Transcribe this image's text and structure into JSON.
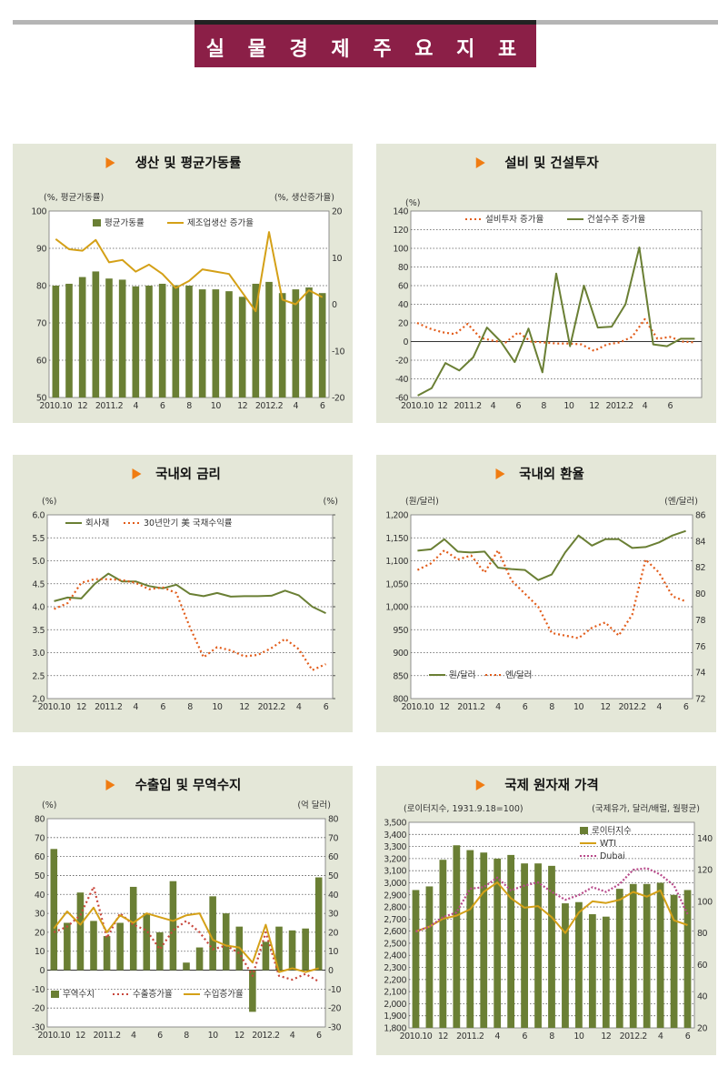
{
  "page": {
    "title": "실 물 경 제 주 요 지 표"
  },
  "chart_data": [
    {
      "id": "prod",
      "type": "bar",
      "title": "생산 및 평균가동률",
      "left_unit": "(%, 평균가동률)",
      "right_unit": "(%, 생산증가율)",
      "x_labels": [
        "2010.10",
        "12",
        "2011.2",
        "4",
        "6",
        "8",
        "10",
        "12",
        "2012.2",
        "4",
        "6"
      ],
      "ylim": [
        50,
        100
      ],
      "yticks": [
        50,
        60,
        70,
        80,
        90,
        100
      ],
      "y2lim": [
        -20,
        20
      ],
      "y2ticks": [
        -20,
        -10,
        0,
        10,
        20
      ],
      "series": [
        {
          "name": "평균가동률",
          "kind": "bar",
          "axis": "left",
          "color": "#6a7f34",
          "values": [
            80.0,
            80.5,
            82.3,
            83.8,
            81.9,
            81.6,
            79.8,
            80.0,
            80.5,
            80.1,
            80.0,
            79.0,
            79.0,
            78.5,
            77.0,
            80.5,
            81.0,
            78.0,
            79.0,
            79.5,
            78.0
          ]
        },
        {
          "name": "제조업생산 증가율",
          "kind": "line",
          "axis": "right",
          "color": "#d4a017",
          "dash": "",
          "values": [
            14.0,
            11.8,
            11.5,
            13.8,
            9.0,
            9.5,
            7.0,
            8.5,
            6.5,
            3.5,
            5.0,
            7.5,
            7.0,
            6.5,
            2.5,
            -1.5,
            15.5,
            1.0,
            0.0,
            3.0,
            1.5
          ]
        }
      ]
    },
    {
      "id": "invest",
      "type": "line",
      "title": "설비 및 건설투자",
      "left_unit": "(%)",
      "right_unit": "",
      "x_labels": [
        "2010.10",
        "12",
        "2011.2",
        "4",
        "6",
        "8",
        "10",
        "12",
        "2012.2",
        "4",
        "6"
      ],
      "ylim": [
        -60,
        140
      ],
      "yticks": [
        -60,
        -40,
        -20,
        0,
        20,
        40,
        60,
        80,
        100,
        120,
        140
      ],
      "series": [
        {
          "name": "설비투자 증가율",
          "kind": "line",
          "axis": "left",
          "color": "#e25c1a",
          "dash": "2,3",
          "values": [
            20.0,
            14.0,
            10.0,
            8.0,
            19.0,
            4.0,
            1.0,
            -1.0,
            10.0,
            0.0,
            -1.0,
            -2.0,
            -2.0,
            -3.0,
            -10.0,
            -3.0,
            -1.0,
            5.0,
            24.0,
            3.0,
            5.0,
            0.0,
            -1.0
          ]
        },
        {
          "name": "건설수주 증가율",
          "kind": "line",
          "axis": "left",
          "color": "#6a7f34",
          "dash": "",
          "values": [
            -58.0,
            -50.0,
            -23.0,
            -31.0,
            -17.0,
            15.0,
            0.0,
            -22.0,
            14.0,
            -33.0,
            73.0,
            -5.0,
            60.0,
            15.0,
            16.0,
            40.0,
            101.0,
            -3.0,
            -5.0,
            3.0,
            3.0
          ]
        }
      ]
    },
    {
      "id": "rate",
      "type": "line",
      "title": "국내외 금리",
      "left_unit": "(%)",
      "right_unit": "(%)",
      "x_labels": [
        "2010.10",
        "12",
        "2011.2",
        "4",
        "6",
        "8",
        "10",
        "12",
        "2012.2",
        "4",
        "6"
      ],
      "ylim": [
        2.0,
        6.0
      ],
      "yticks": [
        2.0,
        2.5,
        3.0,
        3.5,
        4.0,
        4.5,
        5.0,
        5.5,
        6.0
      ],
      "series": [
        {
          "name": "회사채",
          "kind": "line",
          "axis": "left",
          "color": "#6a7f34",
          "dash": "",
          "values": [
            4.12,
            4.2,
            4.18,
            4.5,
            4.72,
            4.55,
            4.55,
            4.45,
            4.4,
            4.48,
            4.28,
            4.23,
            4.3,
            4.22,
            4.23,
            4.23,
            4.24,
            4.35,
            4.25,
            4.0,
            3.86
          ]
        },
        {
          "name": "30년만기 美 국채수익률",
          "kind": "line",
          "axis": "left",
          "color": "#e25c1a",
          "dash": "2,3",
          "values": [
            3.95,
            4.08,
            4.52,
            4.6,
            4.6,
            4.58,
            4.52,
            4.38,
            4.42,
            4.3,
            3.55,
            2.9,
            3.12,
            3.05,
            2.92,
            2.95,
            3.1,
            3.3,
            3.08,
            2.62,
            2.75
          ]
        }
      ]
    },
    {
      "id": "fx",
      "type": "line",
      "title": "국내외 환율",
      "left_unit": "(원/달러)",
      "right_unit": "(엔/달러)",
      "x_labels": [
        "2010.10",
        "12",
        "2011.2",
        "4",
        "6",
        "8",
        "10",
        "12",
        "2012.2",
        "4",
        "6"
      ],
      "ylim": [
        800,
        1200
      ],
      "yticks": [
        800,
        850,
        900,
        950,
        1000,
        1050,
        1100,
        1150,
        1200
      ],
      "y2lim": [
        72,
        86
      ],
      "y2ticks": [
        72,
        74,
        76,
        78,
        80,
        82,
        84,
        86
      ],
      "series": [
        {
          "name": "원/달러",
          "kind": "line",
          "axis": "left",
          "color": "#6a7f34",
          "dash": "",
          "values": [
            1122,
            1125,
            1147,
            1120,
            1118,
            1120,
            1085,
            1082,
            1080,
            1058,
            1070,
            1118,
            1155,
            1133,
            1147,
            1147,
            1128,
            1130,
            1140,
            1155,
            1165
          ]
        },
        {
          "name": "엔/달러",
          "kind": "line",
          "axis": "right",
          "color": "#e25c1a",
          "dash": "2,3",
          "values": [
            81.8,
            82.3,
            83.3,
            82.6,
            82.9,
            81.6,
            83.3,
            81.0,
            80.0,
            79.0,
            77.0,
            76.8,
            76.6,
            77.4,
            77.8,
            76.8,
            78.4,
            82.6,
            81.6,
            79.8,
            79.4
          ]
        }
      ]
    },
    {
      "id": "trade",
      "type": "bar",
      "title": "수출입 및 무역수지",
      "left_unit": "(%)",
      "right_unit": "(억 달러)",
      "x_labels": [
        "2010.10",
        "12",
        "2011.2",
        "4",
        "6",
        "8",
        "10",
        "12",
        "2012.2",
        "4",
        "6"
      ],
      "ylim": [
        -30,
        80
      ],
      "yticks": [
        -30,
        -20,
        -10,
        0,
        10,
        20,
        30,
        40,
        50,
        60,
        70,
        80
      ],
      "y2lim": [
        -30,
        80
      ],
      "y2ticks": [
        -30,
        -20,
        -10,
        0,
        10,
        20,
        30,
        40,
        50,
        60,
        70,
        80
      ],
      "series": [
        {
          "name": "무역수지",
          "kind": "bar",
          "axis": "right",
          "color": "#6a7f34",
          "values": [
            64.0,
            25.0,
            41.0,
            26.0,
            18.0,
            25.0,
            44.0,
            30.0,
            20.0,
            47.0,
            4.0,
            12.0,
            39.0,
            30.0,
            23.0,
            -22.0,
            15.0,
            23.0,
            21.0,
            22.0,
            49.0
          ]
        },
        {
          "name": "수출증가율",
          "kind": "line",
          "axis": "left",
          "color": "#c8463b",
          "dash": "2,3",
          "values": [
            20.0,
            23.0,
            29.0,
            44.0,
            17.0,
            30.0,
            24.0,
            21.0,
            11.0,
            21.0,
            26.0,
            20.0,
            11.0,
            13.0,
            9.0,
            -3.0,
            20.0,
            -3.0,
            -5.0,
            -2.0,
            -6.0
          ]
        },
        {
          "name": "수입증가율",
          "kind": "line",
          "axis": "left",
          "color": "#d4a017",
          "dash": "",
          "values": [
            22.0,
            31.0,
            24.0,
            33.0,
            20.0,
            29.0,
            25.0,
            30.0,
            28.0,
            26.0,
            29.0,
            30.0,
            16.0,
            13.0,
            12.0,
            4.0,
            24.0,
            -1.0,
            1.0,
            -1.0,
            1.0
          ]
        }
      ]
    },
    {
      "id": "commod",
      "type": "bar",
      "title": "국제 원자재 가격",
      "left_unit": "(로이터지수, 1931.9.18=100)",
      "right_unit": "(국제유가, 달러/배럴, 월평균)",
      "x_labels": [
        "2010.10",
        "12",
        "2011.2",
        "4",
        "6",
        "8",
        "10",
        "12",
        "2012.2",
        "4",
        "6"
      ],
      "ylim": [
        1800,
        3500
      ],
      "yticks": [
        1800,
        1900,
        2000,
        2100,
        2200,
        2300,
        2400,
        2500,
        2600,
        2700,
        2800,
        2900,
        3000,
        3100,
        3200,
        3300,
        3400,
        3500
      ],
      "y2lim": [
        20,
        150
      ],
      "y2ticks": [
        20,
        40,
        60,
        80,
        100,
        120,
        140
      ],
      "series": [
        {
          "name": "로이터지수",
          "kind": "bar",
          "axis": "left",
          "color": "#6a7f34",
          "values": [
            2940,
            2970,
            3190,
            3310,
            3270,
            3250,
            3200,
            3230,
            3160,
            3160,
            3140,
            2830,
            2840,
            2740,
            2720,
            2950,
            2990,
            2990,
            3000,
            2900,
            2940
          ]
        },
        {
          "name": "WTI",
          "kind": "line",
          "axis": "right",
          "color": "#d4a017",
          "dash": "",
          "values": [
            81.0,
            84.0,
            89.0,
            91.0,
            95.0,
            106.0,
            112.0,
            102.0,
            96.0,
            97.0,
            90.0,
            80.0,
            93.0,
            100.0,
            99.0,
            101.0,
            106.0,
            103.0,
            107.0,
            88.0,
            85.0
          ]
        },
        {
          "name": "Dubai",
          "kind": "line",
          "axis": "right",
          "color": "#b84a8a",
          "dash": "2,2",
          "values": [
            81.0,
            84.0,
            90.0,
            93.0,
            108.0,
            109.0,
            115.0,
            107.0,
            110.0,
            112.0,
            106.0,
            101.0,
            104.0,
            109.0,
            106.0,
            111.0,
            120.0,
            121.0,
            117.0,
            110.0,
            92.0
          ]
        }
      ]
    }
  ]
}
